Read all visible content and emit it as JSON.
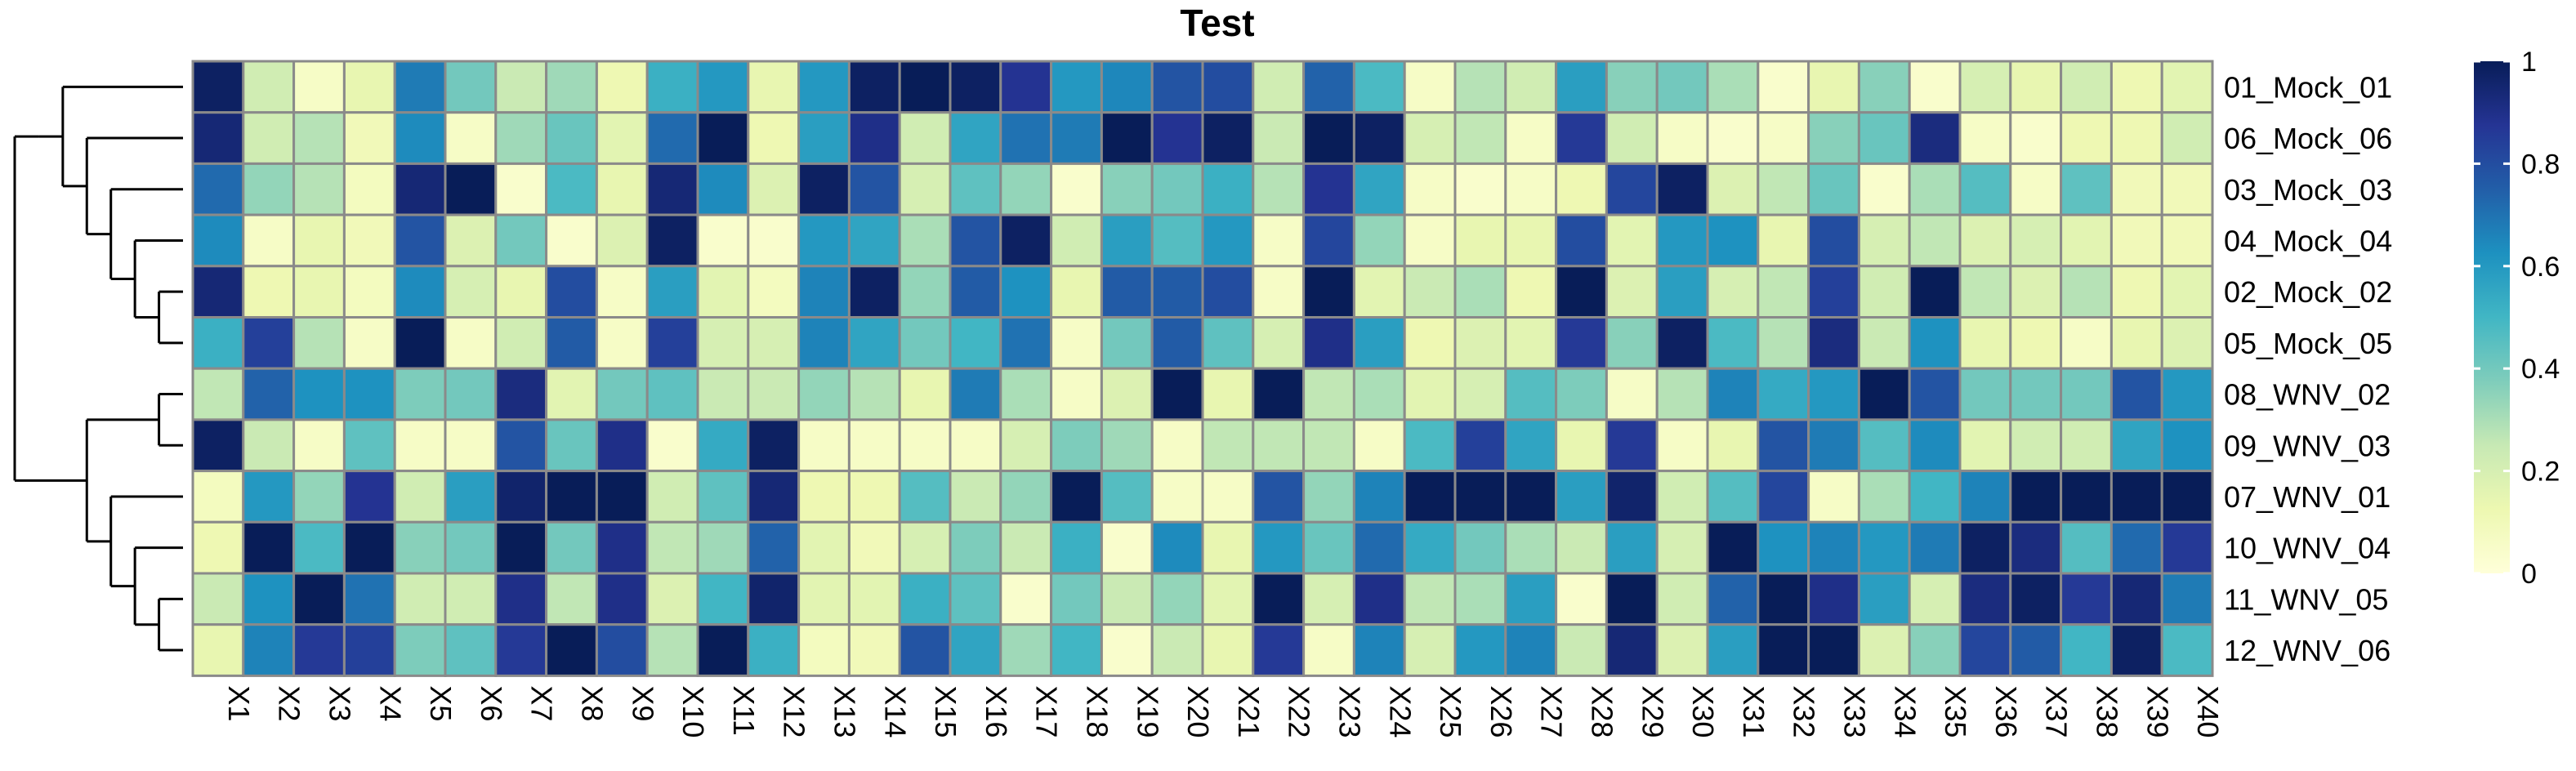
{
  "chart_data": {
    "type": "heatmap",
    "title": "Test",
    "columns": [
      "X1",
      "X2",
      "X3",
      "X4",
      "X5",
      "X6",
      "X7",
      "X8",
      "X9",
      "X10",
      "X11",
      "X12",
      "X13",
      "X14",
      "X15",
      "X16",
      "X17",
      "X18",
      "X19",
      "X20",
      "X21",
      "X22",
      "X23",
      "X24",
      "X25",
      "X26",
      "X27",
      "X28",
      "X29",
      "X30",
      "X31",
      "X32",
      "X33",
      "X34",
      "X35",
      "X36",
      "X37",
      "X38",
      "X39",
      "X40"
    ],
    "rows": [
      "01_Mock_01",
      "06_Mock_06",
      "03_Mock_03",
      "04_Mock_04",
      "02_Mock_02",
      "05_Mock_05",
      "08_WNV_02",
      "09_WNV_03",
      "07_WNV_01",
      "10_WNV_04",
      "11_WNV_05",
      "12_WNV_06"
    ],
    "values": [
      [
        0.98,
        0.22,
        0.06,
        0.14,
        0.68,
        0.4,
        0.24,
        0.32,
        0.12,
        0.52,
        0.6,
        0.14,
        0.6,
        0.98,
        1.0,
        0.98,
        0.88,
        0.6,
        0.65,
        0.78,
        0.8,
        0.22,
        0.74,
        0.48,
        0.06,
        0.28,
        0.22,
        0.58,
        0.36,
        0.4,
        0.3,
        0.04,
        0.14,
        0.36,
        0.04,
        0.2,
        0.14,
        0.22,
        0.12,
        0.16
      ],
      [
        0.94,
        0.22,
        0.28,
        0.1,
        0.64,
        0.06,
        0.32,
        0.42,
        0.16,
        0.72,
        1.0,
        0.12,
        0.58,
        0.9,
        0.22,
        0.56,
        0.7,
        0.68,
        1.0,
        0.88,
        0.98,
        0.24,
        1.0,
        0.98,
        0.2,
        0.26,
        0.06,
        0.86,
        0.22,
        0.06,
        0.04,
        0.06,
        0.36,
        0.42,
        0.92,
        0.06,
        0.04,
        0.12,
        0.12,
        0.22
      ],
      [
        0.72,
        0.34,
        0.28,
        0.08,
        0.94,
        1.0,
        0.04,
        0.48,
        0.14,
        0.94,
        0.64,
        0.18,
        0.98,
        0.78,
        0.2,
        0.44,
        0.34,
        0.04,
        0.36,
        0.4,
        0.52,
        0.28,
        0.88,
        0.56,
        0.06,
        0.04,
        0.06,
        0.12,
        0.82,
        0.98,
        0.18,
        0.26,
        0.42,
        0.04,
        0.3,
        0.46,
        0.06,
        0.44,
        0.1,
        0.1
      ],
      [
        0.64,
        0.06,
        0.14,
        0.1,
        0.78,
        0.18,
        0.4,
        0.04,
        0.18,
        0.98,
        0.04,
        0.04,
        0.6,
        0.56,
        0.3,
        0.78,
        0.98,
        0.22,
        0.58,
        0.46,
        0.6,
        0.06,
        0.82,
        0.34,
        0.06,
        0.14,
        0.14,
        0.8,
        0.16,
        0.6,
        0.62,
        0.14,
        0.8,
        0.2,
        0.26,
        0.18,
        0.2,
        0.16,
        0.1,
        0.1
      ],
      [
        0.94,
        0.12,
        0.14,
        0.08,
        0.64,
        0.2,
        0.14,
        0.8,
        0.06,
        0.58,
        0.16,
        0.08,
        0.66,
        0.98,
        0.34,
        0.76,
        0.62,
        0.14,
        0.76,
        0.76,
        0.8,
        0.06,
        1.0,
        0.16,
        0.24,
        0.3,
        0.12,
        1.0,
        0.18,
        0.58,
        0.2,
        0.26,
        0.84,
        0.22,
        1.0,
        0.26,
        0.18,
        0.28,
        0.12,
        0.16
      ],
      [
        0.52,
        0.84,
        0.28,
        0.06,
        1.0,
        0.06,
        0.22,
        0.76,
        0.06,
        0.84,
        0.2,
        0.2,
        0.66,
        0.56,
        0.4,
        0.5,
        0.7,
        0.06,
        0.4,
        0.76,
        0.44,
        0.2,
        0.9,
        0.58,
        0.12,
        0.18,
        0.16,
        0.86,
        0.36,
        0.98,
        0.48,
        0.28,
        0.92,
        0.24,
        0.62,
        0.14,
        0.12,
        0.06,
        0.14,
        0.18
      ],
      [
        0.26,
        0.74,
        0.62,
        0.62,
        0.38,
        0.4,
        0.92,
        0.16,
        0.4,
        0.44,
        0.24,
        0.24,
        0.34,
        0.28,
        0.14,
        0.68,
        0.3,
        0.06,
        0.18,
        1.0,
        0.14,
        1.0,
        0.26,
        0.3,
        0.16,
        0.2,
        0.46,
        0.38,
        0.06,
        0.28,
        0.66,
        0.54,
        0.6,
        1.0,
        0.78,
        0.4,
        0.4,
        0.4,
        0.78,
        0.6
      ],
      [
        0.98,
        0.24,
        0.06,
        0.44,
        0.06,
        0.06,
        0.78,
        0.42,
        0.9,
        0.04,
        0.54,
        0.98,
        0.06,
        0.06,
        0.06,
        0.06,
        0.2,
        0.38,
        0.32,
        0.06,
        0.26,
        0.26,
        0.26,
        0.06,
        0.48,
        0.84,
        0.56,
        0.14,
        0.86,
        0.06,
        0.14,
        0.78,
        0.68,
        0.46,
        0.64,
        0.16,
        0.22,
        0.22,
        0.56,
        0.62
      ],
      [
        0.08,
        0.6,
        0.34,
        0.88,
        0.22,
        0.58,
        0.96,
        1.0,
        1.0,
        0.22,
        0.44,
        0.94,
        0.12,
        0.12,
        0.46,
        0.24,
        0.34,
        1.0,
        0.46,
        0.06,
        0.06,
        0.78,
        0.34,
        0.66,
        1.0,
        1.0,
        1.0,
        0.58,
        0.96,
        0.22,
        0.46,
        0.82,
        0.06,
        0.3,
        0.5,
        0.66,
        1.0,
        1.0,
        1.0,
        1.0
      ],
      [
        0.12,
        1.0,
        0.48,
        1.0,
        0.36,
        0.4,
        1.0,
        0.4,
        0.9,
        0.26,
        0.32,
        0.74,
        0.16,
        0.1,
        0.2,
        0.38,
        0.24,
        0.52,
        0.04,
        0.64,
        0.14,
        0.6,
        0.42,
        0.72,
        0.54,
        0.4,
        0.3,
        0.24,
        0.58,
        0.2,
        1.0,
        0.62,
        0.66,
        0.6,
        0.68,
        0.98,
        0.92,
        0.46,
        0.72,
        0.86
      ],
      [
        0.24,
        0.62,
        1.0,
        0.7,
        0.22,
        0.22,
        0.9,
        0.26,
        0.9,
        0.18,
        0.5,
        0.96,
        0.16,
        0.16,
        0.52,
        0.44,
        0.04,
        0.4,
        0.24,
        0.34,
        0.16,
        1.0,
        0.2,
        0.9,
        0.26,
        0.3,
        0.58,
        0.04,
        1.0,
        0.22,
        0.74,
        1.0,
        0.9,
        0.58,
        0.2,
        0.92,
        0.98,
        0.86,
        0.94,
        0.68
      ],
      [
        0.14,
        0.66,
        0.86,
        0.84,
        0.38,
        0.44,
        0.86,
        1.0,
        0.8,
        0.28,
        1.0,
        0.52,
        0.08,
        0.1,
        0.78,
        0.56,
        0.32,
        0.5,
        0.04,
        0.24,
        0.14,
        0.86,
        0.06,
        0.66,
        0.2,
        0.6,
        0.66,
        0.24,
        0.94,
        0.18,
        0.58,
        1.0,
        1.0,
        0.18,
        0.36,
        0.82,
        0.76,
        0.5,
        0.98,
        0.48
      ]
    ],
    "range": [
      0,
      1
    ],
    "legend": {
      "ticks": [
        0,
        0.2,
        0.4,
        0.6,
        0.8,
        1
      ],
      "tick_labels": [
        "0",
        "0.2",
        "0.4",
        "0.6",
        "0.8",
        "1"
      ],
      "position": "right"
    },
    "colors": [
      "#ffffd9",
      "#edf8b1",
      "#c7e9b4",
      "#7fcdbb",
      "#41b6c4",
      "#1d91c0",
      "#225ea8",
      "#253494",
      "#081d58"
    ],
    "cell_border_color": "#8a8a8a",
    "row_dendrogram": "left",
    "dendrogram_tree": [
      [
        [
          0,
          [
            1,
            [
              2,
              [
                3,
                [
                  4,
                  5
                ]
              ]
            ]
          ]
        ]
      ],
      [
        [
          6,
          7
        ],
        [
          8,
          [
            9,
            [
              10,
              11
            ]
          ]
        ]
      ]
    ]
  }
}
